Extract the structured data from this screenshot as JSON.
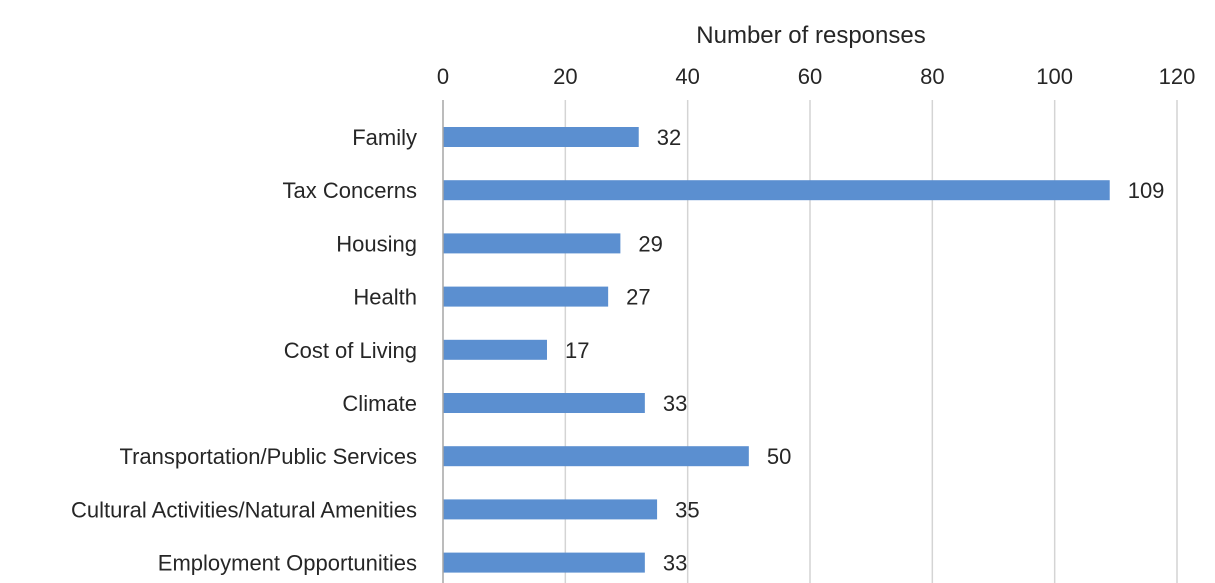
{
  "chart_data": {
    "type": "bar",
    "orientation": "horizontal",
    "xlabel": "Number of responses",
    "ylabel": "",
    "xlim": [
      0,
      120
    ],
    "x_ticks": [
      0,
      20,
      40,
      60,
      80,
      100,
      120
    ],
    "x_axis_position": "top",
    "grid": true,
    "legend": "none",
    "bar_color": "#5b8fd0",
    "data_labels": true,
    "categories": [
      "Family",
      "Tax Concerns",
      "Housing",
      "Health",
      "Cost of Living",
      "Climate",
      "Transportation/Public Services",
      "Cultural Activities/Natural Amenities",
      "Employment Opportunities"
    ],
    "values": [
      32,
      109,
      29,
      27,
      17,
      33,
      50,
      35,
      33
    ]
  }
}
